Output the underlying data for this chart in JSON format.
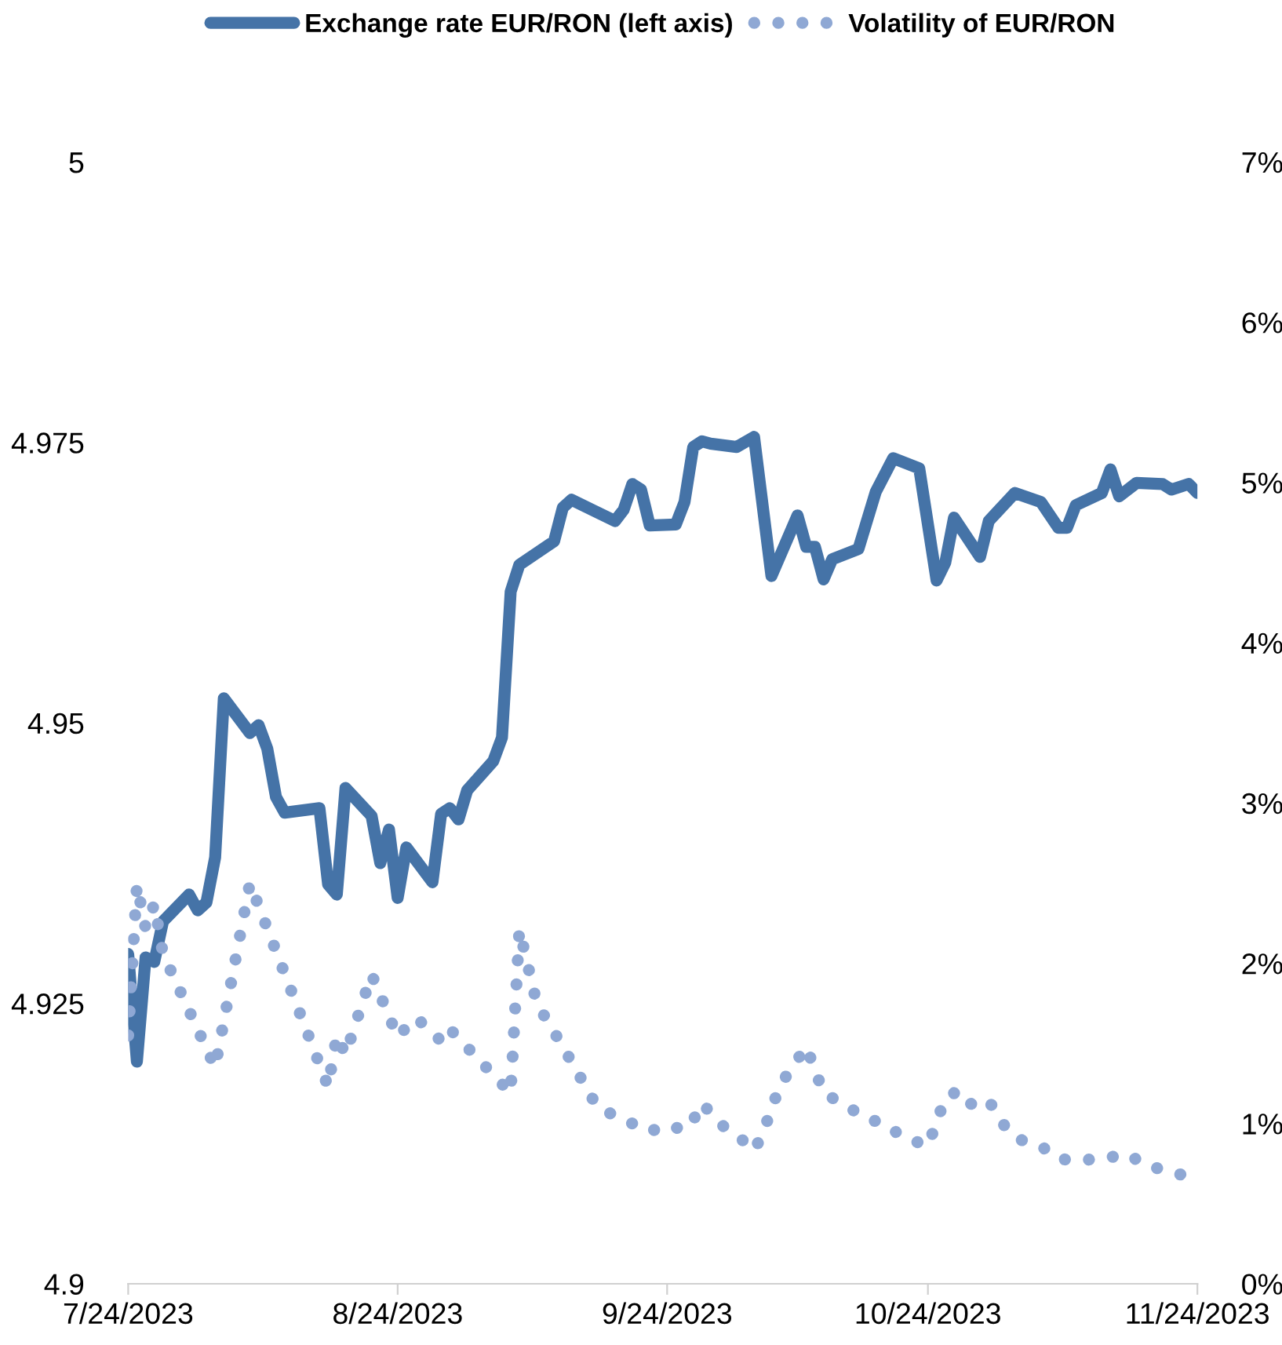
{
  "chart_data": {
    "type": "line",
    "series": [
      {
        "name": "Exchange rate EUR/RON (left axis)",
        "color": "#4573a7",
        "axis": "y",
        "line_style": "solid",
        "x": [
          "2023-07-24",
          "2023-07-25",
          "2023-07-26",
          "2023-07-27",
          "2023-07-28",
          "2023-07-31",
          "2023-08-01",
          "2023-08-02",
          "2023-08-03",
          "2023-08-04",
          "2023-08-07",
          "2023-08-08",
          "2023-08-09",
          "2023-08-10",
          "2023-08-11",
          "2023-08-15",
          "2023-08-16",
          "2023-08-17",
          "2023-08-18",
          "2023-08-21",
          "2023-08-22",
          "2023-08-23",
          "2023-08-24",
          "2023-08-25",
          "2023-08-28",
          "2023-08-29",
          "2023-08-30",
          "2023-08-31",
          "2023-09-01",
          "2023-09-04",
          "2023-09-05",
          "2023-09-06",
          "2023-09-07",
          "2023-09-11",
          "2023-09-12",
          "2023-09-13",
          "2023-09-18",
          "2023-09-19",
          "2023-09-20",
          "2023-09-21",
          "2023-09-22",
          "2023-09-25",
          "2023-09-26",
          "2023-09-27",
          "2023-09-28",
          "2023-09-29",
          "2023-10-02",
          "2023-10-04",
          "2023-10-06",
          "2023-10-09",
          "2023-10-10",
          "2023-10-11",
          "2023-10-12",
          "2023-10-13",
          "2023-10-16",
          "2023-10-18",
          "2023-10-20",
          "2023-10-23",
          "2023-10-25",
          "2023-10-26",
          "2023-10-27",
          "2023-10-30",
          "2023-10-31",
          "2023-11-03",
          "2023-11-06",
          "2023-11-08",
          "2023-11-09",
          "2023-11-10",
          "2023-11-13",
          "2023-11-14",
          "2023-11-15",
          "2023-11-17",
          "2023-11-20",
          "2023-11-21",
          "2023-11-23",
          "2023-11-24"
        ],
        "values": [
          4.9294,
          4.9198,
          4.9291,
          4.9287,
          4.9323,
          4.9347,
          4.9333,
          4.934,
          4.938,
          4.9522,
          4.9491,
          4.9498,
          4.9477,
          4.9434,
          4.942,
          4.9424,
          4.9356,
          4.9347,
          4.9442,
          4.9417,
          4.9375,
          4.9405,
          4.9344,
          4.9389,
          4.9358,
          4.9419,
          4.9424,
          4.9414,
          4.944,
          4.9466,
          4.9487,
          4.9617,
          4.9641,
          4.9662,
          4.9692,
          4.9699,
          4.968,
          4.969,
          4.9713,
          4.9708,
          4.9676,
          4.9677,
          4.9697,
          4.9746,
          4.9751,
          4.9749,
          4.9746,
          4.9755,
          4.9631,
          4.9685,
          4.9657,
          4.9657,
          4.9628,
          4.9646,
          4.9655,
          4.9706,
          4.9736,
          4.9727,
          4.9627,
          4.9643,
          4.9683,
          4.9648,
          4.968,
          4.9705,
          4.9697,
          4.9674,
          4.9674,
          4.9694,
          4.9705,
          4.9726,
          4.9702,
          4.9714,
          4.9713,
          4.9708,
          4.9713,
          4.9705
        ]
      },
      {
        "name": "Volatility of EUR/RON",
        "color": "#8fa8d4",
        "axis": "y2",
        "line_style": "dotted",
        "x": [
          "2023-07-24",
          "2023-07-25",
          "2023-07-26",
          "2023-07-27",
          "2023-07-28",
          "2023-08-03",
          "2023-08-07",
          "2023-08-16",
          "2023-08-17",
          "2023-08-18",
          "2023-08-21",
          "2023-08-24",
          "2023-08-26",
          "2023-08-28",
          "2023-08-29",
          "2023-08-30",
          "2023-09-06",
          "2023-09-07",
          "2023-09-09",
          "2023-09-12",
          "2023-09-16",
          "2023-09-22",
          "2023-09-24",
          "2023-09-26",
          "2023-09-27",
          "2023-09-28",
          "2023-09-30",
          "2023-10-02",
          "2023-10-04",
          "2023-10-05",
          "2023-10-07",
          "2023-10-10",
          "2023-10-12",
          "2023-10-14",
          "2023-10-17",
          "2023-10-19",
          "2023-10-21",
          "2023-10-24",
          "2023-10-25",
          "2023-10-26",
          "2023-10-27",
          "2023-10-28",
          "2023-10-31",
          "2023-11-01",
          "2023-11-03",
          "2023-11-06",
          "2023-11-08",
          "2023-11-10",
          "2023-11-13",
          "2023-11-16",
          "2023-11-18",
          "2023-11-21",
          "2023-11-24"
        ],
        "values": [
          1.55,
          2.49,
          2.22,
          2.37,
          2.06,
          1.35,
          2.5,
          1.23,
          1.55,
          1.43,
          1.93,
          1.54,
          1.66,
          1.58,
          1.51,
          1.59,
          1.19,
          2.21,
          1.75,
          1.48,
          1.1,
          0.95,
          0.99,
          0.96,
          1.02,
          1.13,
          1.0,
          0.93,
          0.83,
          0.94,
          1.24,
          1.48,
          1.19,
          1.13,
          1.03,
          1.0,
          0.92,
          0.86,
          1.01,
          1.16,
          1.19,
          1.11,
          1.15,
          1.04,
          0.91,
          0.86,
          0.78,
          0.77,
          0.78,
          0.81,
          0.74,
          0.7,
          0.65
        ]
      }
    ],
    "xlim": [
      "2023-07-24",
      "2023-11-24"
    ],
    "xticks": [
      {
        "value": "2023-07-24",
        "label": "7/24/2023"
      },
      {
        "value": "2023-08-24",
        "label": "8/24/2023"
      },
      {
        "value": "2023-09-24",
        "label": "9/24/2023"
      },
      {
        "value": "2023-10-24",
        "label": "10/24/2023"
      },
      {
        "value": "2023-11-24",
        "label": "11/24/2023"
      }
    ],
    "ylim": [
      4.9,
      5
    ],
    "yticks": [
      4.9,
      4.925,
      4.95,
      4.975,
      5
    ],
    "y2lim": [
      0,
      7
    ],
    "y2ticks": [
      {
        "value": 0,
        "label": "0%"
      },
      {
        "value": 1,
        "label": "1%"
      },
      {
        "value": 2,
        "label": "2%"
      },
      {
        "value": 3,
        "label": "3%"
      },
      {
        "value": 4,
        "label": "4%"
      },
      {
        "value": 5,
        "label": "5%"
      },
      {
        "value": 6,
        "label": "6%"
      },
      {
        "value": 7,
        "label": "7%"
      }
    ],
    "grid": false,
    "legend": "top"
  }
}
